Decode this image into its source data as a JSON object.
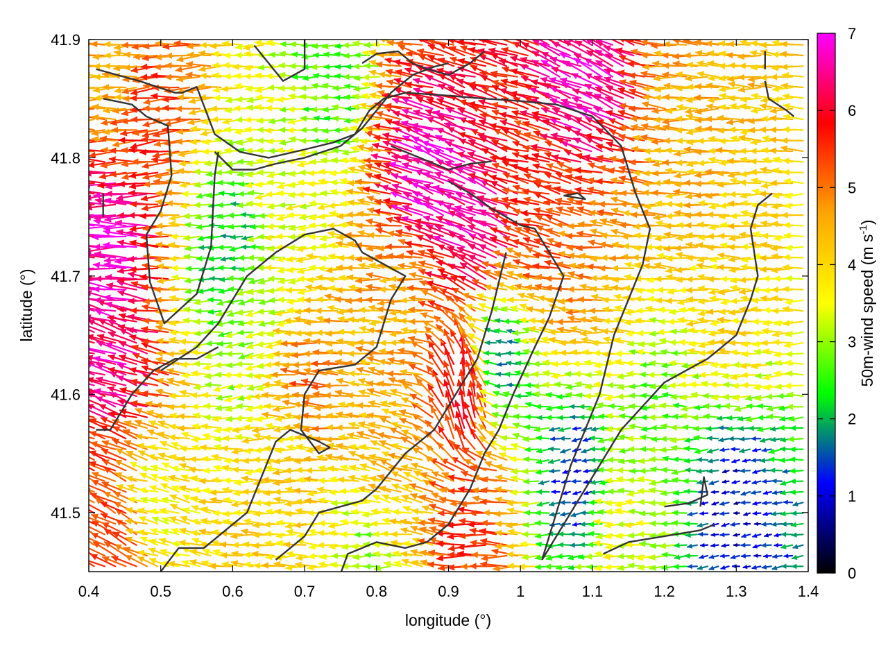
{
  "chart_data": {
    "type": "vector-field",
    "xlabel": "longitude (°)",
    "ylabel": "latitude (°)",
    "xlim": [
      0.4,
      1.4
    ],
    "ylim": [
      41.45,
      41.9
    ],
    "x_ticks": [
      0.4,
      0.5,
      0.6,
      0.7,
      0.8,
      0.9,
      1.0,
      1.1,
      1.2,
      1.3,
      1.4
    ],
    "x_tick_labels": [
      "0.4",
      "0.5",
      "0.6",
      "0.7",
      "0.8",
      "0.9",
      "1",
      "1.1",
      "1.2",
      "1.3",
      "1.4"
    ],
    "y_ticks": [
      41.5,
      41.6,
      41.7,
      41.8,
      41.9
    ],
    "y_tick_labels": [
      "41.5",
      "41.6",
      "41.7",
      "41.8",
      "41.9"
    ],
    "colorbar": {
      "label_main": "50m-wind speed (m s",
      "label_sup": "-1",
      "label_end": ")",
      "range": [
        0,
        7
      ],
      "ticks": [
        0,
        1,
        2,
        3,
        4,
        5,
        6,
        7
      ],
      "tick_labels": [
        "0",
        "1",
        "2",
        "3",
        "4",
        "5",
        "6",
        "7"
      ],
      "stops": [
        "#000000",
        "#0000ff",
        "#00ff00",
        "#ffff00",
        "#ffa500",
        "#ff0000",
        "#ff00ff"
      ]
    },
    "wind_regions": [
      {
        "x": 0.45,
        "y": 41.73,
        "speed": 6.8,
        "dir": 180
      },
      {
        "x": 0.45,
        "y": 41.63,
        "speed": 6.5,
        "dir": 160
      },
      {
        "x": 0.5,
        "y": 41.83,
        "speed": 5.5,
        "dir": 185
      },
      {
        "x": 0.45,
        "y": 41.87,
        "speed": 4.5,
        "dir": 180
      },
      {
        "x": 0.6,
        "y": 41.72,
        "speed": 2.0,
        "dir": 185
      },
      {
        "x": 0.63,
        "y": 41.65,
        "speed": 3.0,
        "dir": 190
      },
      {
        "x": 0.7,
        "y": 41.75,
        "speed": 3.5,
        "dir": 185
      },
      {
        "x": 0.75,
        "y": 41.86,
        "speed": 2.5,
        "dir": 180
      },
      {
        "x": 0.88,
        "y": 41.78,
        "speed": 6.9,
        "dir": 160
      },
      {
        "x": 0.95,
        "y": 41.73,
        "speed": 6.8,
        "dir": 155
      },
      {
        "x": 1.1,
        "y": 41.86,
        "speed": 6.8,
        "dir": 155
      },
      {
        "x": 1.05,
        "y": 41.75,
        "speed": 5.5,
        "dir": 165
      },
      {
        "x": 1.1,
        "y": 41.7,
        "speed": 4.8,
        "dir": 175
      },
      {
        "x": 1.25,
        "y": 41.8,
        "speed": 4.5,
        "dir": 180
      },
      {
        "x": 1.3,
        "y": 41.68,
        "speed": 4.0,
        "dir": 180
      },
      {
        "x": 0.85,
        "y": 41.68,
        "speed": 4.5,
        "dir": 180
      },
      {
        "x": 0.98,
        "y": 41.63,
        "speed": 1.5,
        "dir": 180
      },
      {
        "x": 0.93,
        "y": 41.6,
        "speed": 6.0,
        "dir": 95
      },
      {
        "x": 1.08,
        "y": 41.53,
        "speed": 1.2,
        "dir": 190
      },
      {
        "x": 1.3,
        "y": 41.5,
        "speed": 1.0,
        "dir": 190
      },
      {
        "x": 1.2,
        "y": 41.58,
        "speed": 2.8,
        "dir": 180
      },
      {
        "x": 0.7,
        "y": 41.55,
        "speed": 4.0,
        "dir": 180
      },
      {
        "x": 0.72,
        "y": 41.6,
        "speed": 5.2,
        "dir": 175
      },
      {
        "x": 0.5,
        "y": 41.5,
        "speed": 3.5,
        "dir": 165
      },
      {
        "x": 0.45,
        "y": 41.47,
        "speed": 5.5,
        "dir": 150
      },
      {
        "x": 0.8,
        "y": 41.48,
        "speed": 2.8,
        "dir": 185
      },
      {
        "x": 0.95,
        "y": 41.48,
        "speed": 5.5,
        "dir": 180
      },
      {
        "x": 0.82,
        "y": 41.53,
        "speed": 4.5,
        "dir": 160
      },
      {
        "x": 1.15,
        "y": 41.48,
        "speed": 3.5,
        "dir": 180
      }
    ],
    "boundary_lines": [
      [
        [
          0.41,
          41.875
        ],
        [
          0.47,
          41.865
        ],
        [
          0.52,
          41.855
        ],
        [
          0.53,
          41.855
        ],
        [
          0.55,
          41.86
        ],
        [
          0.575,
          41.82
        ],
        [
          0.61,
          41.805
        ],
        [
          0.65,
          41.8
        ],
        [
          0.7,
          41.807
        ],
        [
          0.74,
          41.813
        ],
        [
          0.77,
          41.82
        ],
        [
          0.78,
          41.825
        ],
        [
          0.8,
          41.84
        ],
        [
          0.82,
          41.855
        ],
        [
          0.85,
          41.87
        ],
        [
          0.88,
          41.877
        ],
        [
          0.9,
          41.88
        ]
      ],
      [
        [
          0.42,
          41.85
        ],
        [
          0.46,
          41.845
        ],
        [
          0.48,
          41.835
        ],
        [
          0.51,
          41.827
        ],
        [
          0.515,
          41.785
        ],
        [
          0.5,
          41.755
        ],
        [
          0.48,
          41.735
        ],
        [
          0.485,
          41.695
        ],
        [
          0.505,
          41.66
        ],
        [
          0.55,
          41.685
        ],
        [
          0.57,
          41.725
        ],
        [
          0.575,
          41.785
        ],
        [
          0.58,
          41.805
        ]
      ],
      [
        [
          0.42,
          41.77
        ],
        [
          0.42,
          41.75
        ]
      ],
      [
        [
          0.575,
          41.805
        ],
        [
          0.6,
          41.79
        ],
        [
          0.63,
          41.79
        ],
        [
          0.66,
          41.795
        ],
        [
          0.7,
          41.8
        ],
        [
          0.75,
          41.81
        ],
        [
          0.77,
          41.82
        ],
        [
          0.79,
          41.84
        ],
        [
          0.81,
          41.85
        ],
        [
          0.84,
          41.855
        ],
        [
          0.89,
          41.853
        ],
        [
          0.95,
          41.85
        ],
        [
          1.0,
          41.848
        ],
        [
          1.05,
          41.845
        ],
        [
          1.1,
          41.835
        ],
        [
          1.14,
          41.81
        ],
        [
          1.16,
          41.77
        ],
        [
          1.18,
          41.74
        ],
        [
          1.17,
          41.71
        ],
        [
          1.15,
          41.68
        ],
        [
          1.13,
          41.65
        ],
        [
          1.11,
          41.6
        ],
        [
          1.09,
          41.57
        ],
        [
          1.07,
          41.54
        ],
        [
          1.05,
          41.5
        ],
        [
          1.03,
          41.46
        ]
      ],
      [
        [
          0.82,
          41.81
        ],
        [
          0.86,
          41.8
        ],
        [
          0.9,
          41.79
        ],
        [
          0.93,
          41.795
        ],
        [
          0.96,
          41.797
        ]
      ],
      [
        [
          0.63,
          41.895
        ],
        [
          0.65,
          41.88
        ],
        [
          0.67,
          41.865
        ],
        [
          0.7,
          41.875
        ],
        [
          0.7,
          41.9
        ]
      ],
      [
        [
          0.78,
          41.88
        ],
        [
          0.8,
          41.888
        ],
        [
          0.83,
          41.89
        ],
        [
          0.85,
          41.88
        ],
        [
          0.87,
          41.875
        ],
        [
          0.9,
          41.87
        ],
        [
          0.93,
          41.88
        ],
        [
          0.95,
          41.89
        ]
      ],
      [
        [
          0.9,
          41.78
        ],
        [
          0.93,
          41.77
        ],
        [
          0.96,
          41.757
        ],
        [
          1.0,
          41.743
        ],
        [
          1.02,
          41.74
        ],
        [
          1.04,
          41.72
        ],
        [
          1.06,
          41.7
        ],
        [
          1.04,
          41.665
        ],
        [
          1.02,
          41.64
        ],
        [
          0.99,
          41.6
        ],
        [
          0.97,
          41.57
        ],
        [
          0.95,
          41.55
        ],
        [
          0.93,
          41.52
        ],
        [
          0.9,
          41.49
        ],
        [
          0.87,
          41.475
        ],
        [
          0.84,
          41.47
        ],
        [
          0.8,
          41.475
        ],
        [
          0.76,
          41.465
        ],
        [
          0.745,
          41.44
        ]
      ],
      [
        [
          1.06,
          41.768
        ],
        [
          1.09,
          41.765
        ],
        [
          1.08,
          41.77
        ],
        [
          1.06,
          41.768
        ]
      ],
      [
        [
          0.5,
          41.62
        ],
        [
          0.55,
          41.64
        ],
        [
          0.58,
          41.66
        ],
        [
          0.62,
          41.7
        ],
        [
          0.66,
          41.72
        ],
        [
          0.7,
          41.735
        ],
        [
          0.74,
          41.74
        ],
        [
          0.77,
          41.73
        ],
        [
          0.78,
          41.72
        ],
        [
          0.84,
          41.7
        ],
        [
          0.82,
          41.68
        ],
        [
          0.8,
          41.64
        ],
        [
          0.77,
          41.625
        ],
        [
          0.72,
          41.62
        ],
        [
          0.7,
          41.6
        ],
        [
          0.695,
          41.57
        ],
        [
          0.72,
          41.55
        ],
        [
          0.735,
          41.555
        ],
        [
          0.72,
          41.56
        ],
        [
          0.68,
          41.57
        ],
        [
          0.66,
          41.56
        ],
        [
          0.64,
          41.53
        ],
        [
          0.62,
          41.5
        ],
        [
          0.6,
          41.49
        ],
        [
          0.58,
          41.48
        ],
        [
          0.56,
          41.47
        ],
        [
          0.525,
          41.47
        ],
        [
          0.5,
          41.45
        ]
      ],
      [
        [
          0.41,
          41.57
        ],
        [
          0.43,
          41.57
        ],
        [
          0.46,
          41.6
        ],
        [
          0.49,
          41.62
        ],
        [
          0.52,
          41.63
        ],
        [
          0.55,
          41.63
        ],
        [
          0.58,
          41.64
        ]
      ],
      [
        [
          0.66,
          41.46
        ],
        [
          0.68,
          41.47
        ],
        [
          0.7,
          41.48
        ],
        [
          0.72,
          41.5
        ],
        [
          0.78,
          41.51
        ],
        [
          0.8,
          41.52
        ],
        [
          0.84,
          41.55
        ],
        [
          0.88,
          41.57
        ],
        [
          0.91,
          41.6
        ],
        [
          0.94,
          41.63
        ],
        [
          0.96,
          41.67
        ],
        [
          0.98,
          41.72
        ]
      ],
      [
        [
          1.03,
          41.46
        ],
        [
          1.05,
          41.48
        ],
        [
          1.08,
          41.51
        ],
        [
          1.11,
          41.54
        ],
        [
          1.14,
          41.57
        ],
        [
          1.17,
          41.59
        ],
        [
          1.2,
          41.61
        ],
        [
          1.23,
          41.62
        ],
        [
          1.26,
          41.63
        ],
        [
          1.28,
          41.64
        ],
        [
          1.3,
          41.65
        ],
        [
          1.32,
          41.68
        ],
        [
          1.33,
          41.7
        ],
        [
          1.32,
          41.74
        ],
        [
          1.33,
          41.76
        ],
        [
          1.35,
          41.77
        ]
      ],
      [
        [
          1.115,
          41.465
        ],
        [
          1.15,
          41.475
        ],
        [
          1.2,
          41.48
        ],
        [
          1.25,
          41.485
        ],
        [
          1.27,
          41.49
        ]
      ],
      [
        [
          1.2,
          41.505
        ],
        [
          1.235,
          41.508
        ],
        [
          1.26,
          41.515
        ],
        [
          1.255,
          41.53
        ],
        [
          1.25,
          41.505
        ]
      ],
      [
        [
          1.34,
          41.865
        ],
        [
          1.345,
          41.85
        ],
        [
          1.37,
          41.84
        ],
        [
          1.38,
          41.835
        ]
      ],
      [
        [
          1.34,
          41.875
        ],
        [
          1.34,
          41.89
        ]
      ]
    ]
  }
}
